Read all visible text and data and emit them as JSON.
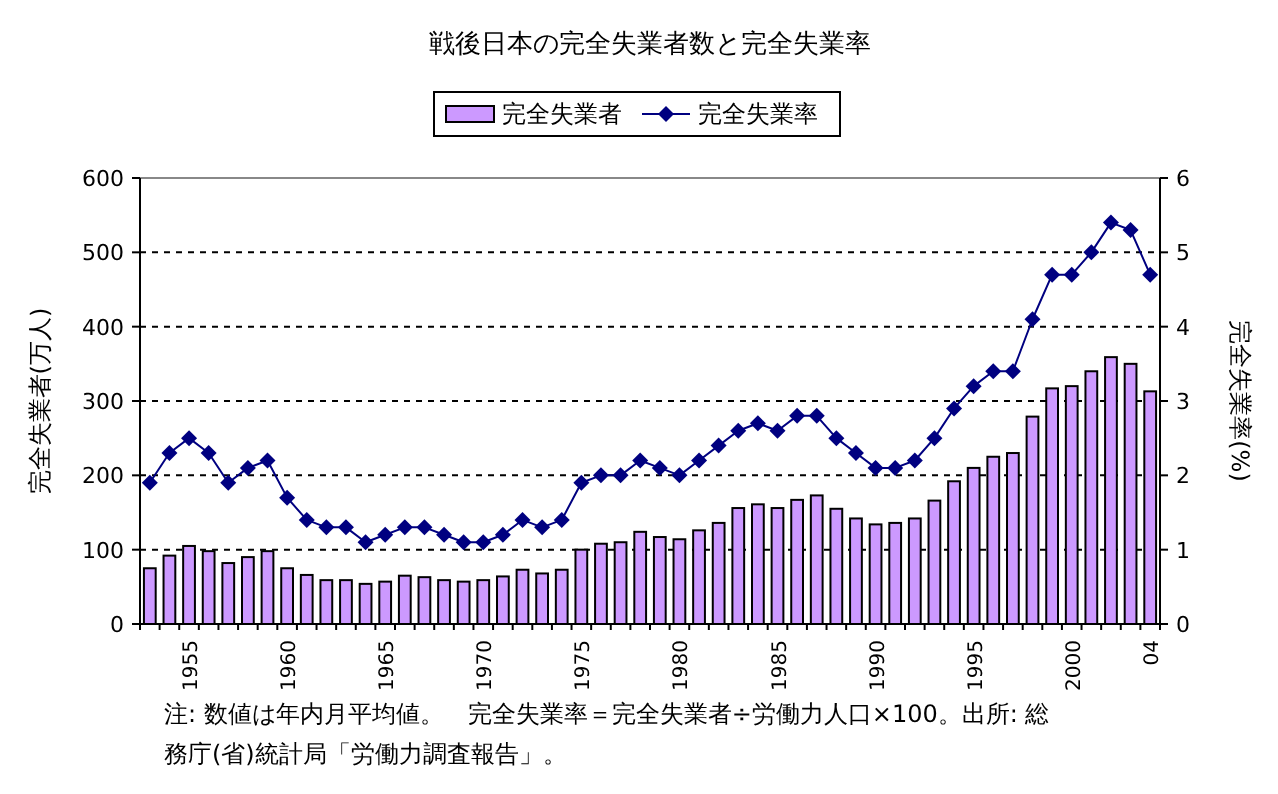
{
  "chart_data": {
    "type": "bar",
    "title": "戦後日本の完全失業者数と完全失業率",
    "ylabel": "完全失業者(万人)",
    "y2label": "完全失業率(%)",
    "categories": [
      null,
      null,
      "1955",
      null,
      null,
      null,
      null,
      "1960",
      null,
      null,
      null,
      null,
      "1965",
      null,
      null,
      null,
      null,
      "1970",
      null,
      null,
      null,
      null,
      "1975",
      null,
      null,
      null,
      null,
      "1980",
      null,
      null,
      null,
      null,
      "1985",
      null,
      null,
      null,
      null,
      "1990",
      null,
      null,
      null,
      null,
      "1995",
      null,
      null,
      null,
      null,
      "2000",
      null,
      null,
      null,
      "04"
    ],
    "series": [
      {
        "name": "完全失業者",
        "color": "#cc99ff",
        "values": [
          75,
          92,
          105,
          98,
          82,
          90,
          98,
          75,
          66,
          59,
          59,
          54,
          57,
          65,
          63,
          59,
          57,
          59,
          64,
          73,
          68,
          73,
          100,
          108,
          110,
          124,
          117,
          114,
          126,
          136,
          156,
          161,
          156,
          167,
          173,
          155,
          142,
          134,
          136,
          142,
          166,
          192,
          210,
          225,
          230,
          279,
          317,
          320,
          340,
          359,
          350,
          313
        ]
      },
      {
        "name": "完全失業率",
        "type": "line",
        "axis": "y2",
        "color": "#000080",
        "marker": "diamond",
        "values": [
          1.9,
          2.3,
          2.5,
          2.3,
          1.9,
          2.1,
          2.2,
          1.7,
          1.4,
          1.3,
          1.3,
          1.1,
          1.2,
          1.3,
          1.3,
          1.2,
          1.1,
          1.1,
          1.2,
          1.4,
          1.3,
          1.4,
          1.9,
          2.0,
          2.0,
          2.2,
          2.1,
          2.0,
          2.2,
          2.4,
          2.6,
          2.7,
          2.6,
          2.8,
          2.8,
          2.5,
          2.3,
          2.1,
          2.1,
          2.2,
          2.5,
          2.9,
          3.2,
          3.4,
          3.4,
          4.1,
          4.7,
          4.7,
          5.0,
          5.4,
          5.3,
          4.7
        ]
      }
    ],
    "ylim": [
      0,
      600
    ],
    "yticks": [
      0,
      100,
      200,
      300,
      400,
      500,
      600
    ],
    "y2lim": [
      0,
      6
    ],
    "y2ticks": [
      0,
      1,
      2,
      3,
      4,
      5,
      6
    ],
    "grid": "y",
    "legend": "top",
    "annotations": [
      "注: 数値は年内月平均値。　完全失業率＝完全失業者÷労働力人口×100。出所: 総務庁(省)統計局「労働力調査報告」。"
    ]
  }
}
